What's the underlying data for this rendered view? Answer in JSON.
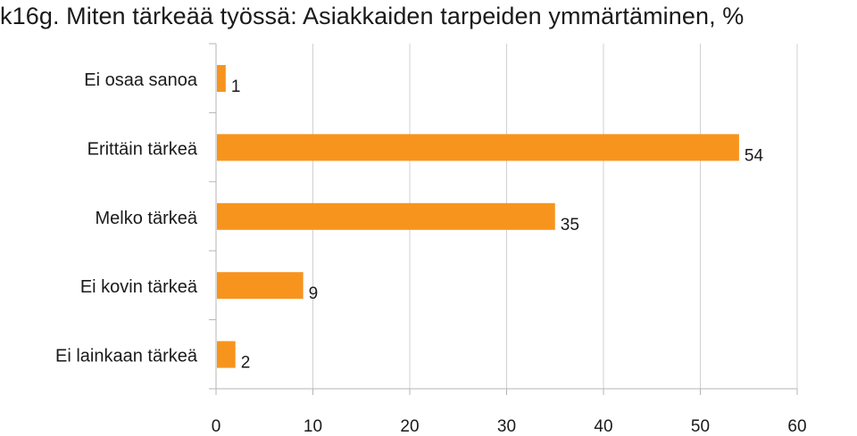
{
  "chart_data": {
    "type": "bar",
    "orientation": "horizontal",
    "title": "k16g. Miten tärkeää työssä: Asiakkaiden tarpeiden ymmärtäminen, %",
    "categories": [
      "Ei osaa sanoa",
      "Erittäin tärkeä",
      "Melko tärkeä",
      "Ei kovin tärkeä",
      "Ei lainkaan tärkeä"
    ],
    "values": [
      1,
      54,
      35,
      9,
      2
    ],
    "xlim": [
      0,
      60
    ],
    "xticks": [
      "0",
      "10",
      "20",
      "30",
      "40",
      "50",
      "60"
    ],
    "grid": true,
    "legend": "none",
    "bar_color": "#F7941D",
    "grid_color": "#d0d0d0",
    "axis_color": "#b5b5b5"
  }
}
